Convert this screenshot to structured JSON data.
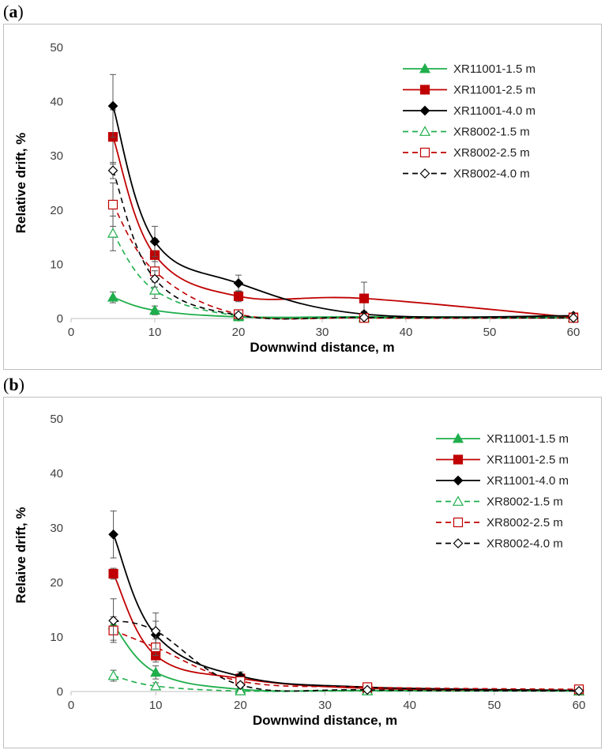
{
  "panels": [
    {
      "label": "a",
      "colors": {
        "green": "#1fae4b",
        "red": "#c00000",
        "black": "#000000"
      },
      "chart_data": {
        "type": "line",
        "xlabel": "Downwind distance, m",
        "ylabel": "Relative drift, %",
        "xlim": [
          0,
          60
        ],
        "ylim": [
          0,
          50
        ],
        "xticks": [
          0,
          10,
          20,
          30,
          40,
          50,
          60
        ],
        "yticks": [
          0,
          10,
          20,
          30,
          40,
          50
        ],
        "x": [
          5,
          10,
          20,
          35,
          60
        ],
        "legend_position": "top-right",
        "series": [
          {
            "name": "XR11001-1.5 m",
            "color": "#1fae4b",
            "dashed": false,
            "marker": "triangle",
            "filled": true,
            "values": [
              3.9,
              1.5,
              0.3,
              0.3,
              0.2
            ],
            "error": [
              1.0,
              0.8,
              0.3,
              0.3,
              0.2
            ]
          },
          {
            "name": "XR11001-2.5 m",
            "color": "#c00000",
            "dashed": false,
            "marker": "square",
            "filled": true,
            "values": [
              33.5,
              11.7,
              4.1,
              3.7,
              0.2
            ],
            "error": [
              5.0,
              3.0,
              1.0,
              3.0,
              0.3
            ]
          },
          {
            "name": "XR11001-4.0 m",
            "color": "#000000",
            "dashed": false,
            "marker": "diamond",
            "filled": true,
            "values": [
              39.2,
              14.2,
              6.5,
              0.8,
              0.5
            ],
            "error": [
              5.8,
              2.8,
              1.5,
              0.5,
              0.3
            ]
          },
          {
            "name": "XR8002-1.5 m",
            "color": "#1fae4b",
            "dashed": true,
            "marker": "triangle",
            "filled": false,
            "values": [
              15.7,
              5.2,
              0.5,
              0.1,
              0.1
            ],
            "error": [
              3.2,
              1.5,
              0.3,
              0.1,
              0.1
            ]
          },
          {
            "name": "XR8002-2.5 m",
            "color": "#c00000",
            "dashed": true,
            "marker": "square",
            "filled": false,
            "values": [
              21.0,
              8.7,
              0.8,
              0.1,
              0.1
            ],
            "error": [
              4.0,
              1.8,
              0.4,
              0.1,
              0.1
            ]
          },
          {
            "name": "XR8002-4.0 m",
            "color": "#000000",
            "dashed": true,
            "marker": "diamond",
            "filled": false,
            "values": [
              27.3,
              7.3,
              0.6,
              0.2,
              0.1
            ],
            "error": [
              1.5,
              1.5,
              0.4,
              0.1,
              0.1
            ]
          }
        ]
      }
    },
    {
      "label": "b",
      "colors": {
        "green": "#1fae4b",
        "red": "#c00000",
        "black": "#000000"
      },
      "chart_data": {
        "type": "line",
        "xlabel": "Downwind distance, m",
        "ylabel": "Relaive drift, %",
        "xlim": [
          0,
          60
        ],
        "ylim": [
          0,
          50
        ],
        "xticks": [
          0,
          10,
          20,
          30,
          40,
          50,
          60
        ],
        "yticks": [
          0,
          10,
          20,
          30,
          40,
          50
        ],
        "x": [
          5,
          10,
          20,
          35,
          60
        ],
        "legend_position": "top-right",
        "series": [
          {
            "name": "XR11001-1.5 m",
            "color": "#1fae4b",
            "dashed": false,
            "marker": "triangle",
            "filled": true,
            "values": [
              12.2,
              3.5,
              0.4,
              0.2,
              0.1
            ],
            "error": [
              1.5,
              1.2,
              0.3,
              0.2,
              0.1
            ]
          },
          {
            "name": "XR11001-2.5 m",
            "color": "#c00000",
            "dashed": false,
            "marker": "square",
            "filled": true,
            "values": [
              21.6,
              6.6,
              2.4,
              0.6,
              0.2
            ],
            "error": [
              1.0,
              1.2,
              0.8,
              0.5,
              0.3
            ]
          },
          {
            "name": "XR11001-4.0 m",
            "color": "#000000",
            "dashed": false,
            "marker": "diamond",
            "filled": true,
            "values": [
              28.8,
              10.4,
              2.8,
              0.8,
              0.2
            ],
            "error": [
              4.3,
              2.5,
              0.8,
              0.5,
              0.3
            ]
          },
          {
            "name": "XR8002-1.5 m",
            "color": "#1fae4b",
            "dashed": true,
            "marker": "triangle",
            "filled": false,
            "values": [
              2.9,
              1.0,
              0.1,
              0.1,
              0.1
            ],
            "error": [
              1.0,
              0.6,
              0.1,
              0.1,
              0.1
            ]
          },
          {
            "name": "XR8002-2.5 m",
            "color": "#c00000",
            "dashed": true,
            "marker": "square",
            "filled": false,
            "values": [
              11.2,
              8.1,
              1.9,
              0.8,
              0.4
            ],
            "error": [
              1.8,
              1.5,
              0.6,
              0.6,
              0.3
            ]
          },
          {
            "name": "XR8002-4.0 m",
            "color": "#000000",
            "dashed": true,
            "marker": "diamond",
            "filled": false,
            "values": [
              13.0,
              11.1,
              1.2,
              0.3,
              0.1
            ],
            "error": [
              4.0,
              3.3,
              0.5,
              0.2,
              0.1
            ]
          }
        ]
      }
    }
  ]
}
